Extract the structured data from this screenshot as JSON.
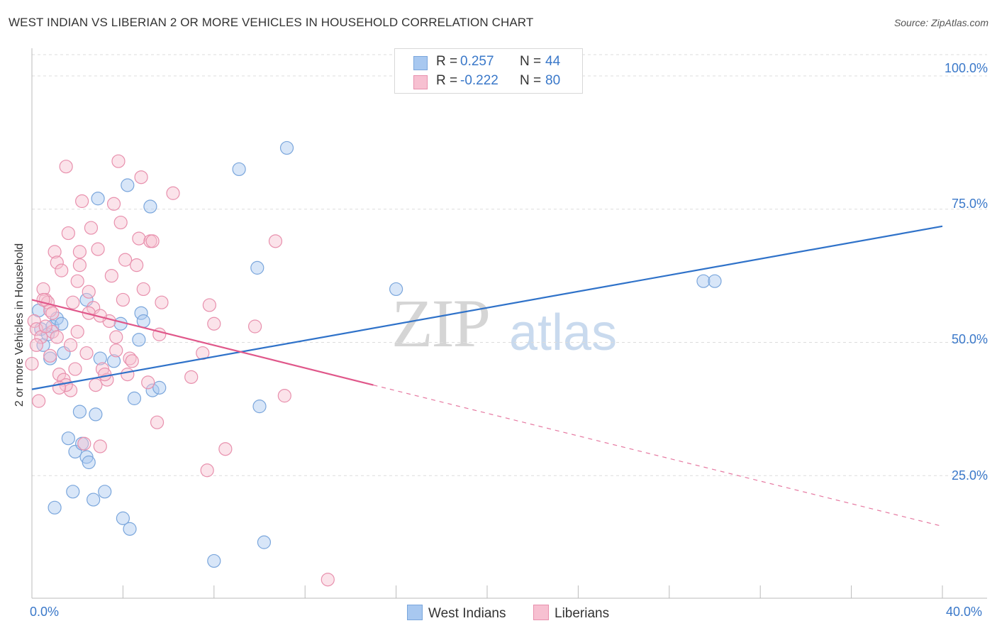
{
  "title": "WEST INDIAN VS LIBERIAN 2 OR MORE VEHICLES IN HOUSEHOLD CORRELATION CHART",
  "source": "Source: ZipAtlas.com",
  "watermark": {
    "zip": "ZIP",
    "atlas": "atlas"
  },
  "legend": {
    "rows": [
      {
        "r_label": "R =",
        "r_value": "0.257",
        "n_label": "N =",
        "n_value": "44",
        "color": "#a8c8f0",
        "border": "#7aa6dc"
      },
      {
        "r_label": "R =",
        "r_value": "-0.222",
        "n_label": "N =",
        "n_value": "80",
        "color": "#f7c0d1",
        "border": "#e890ad"
      }
    ]
  },
  "bottom_legend": [
    {
      "label": "West Indians",
      "color": "#a8c8f0",
      "border": "#7aa6dc"
    },
    {
      "label": "Liberians",
      "color": "#f7c0d1",
      "border": "#e890ad"
    }
  ],
  "chart_data": {
    "type": "scatter",
    "title": "WEST INDIAN VS LIBERIAN 2 OR MORE VEHICLES IN HOUSEHOLD CORRELATION CHART",
    "xlabel": "",
    "ylabel": "2 or more Vehicles in Household",
    "xlim": [
      0,
      40
    ],
    "ylim": [
      2,
      104
    ],
    "x_tick_labels": [
      "0.0%",
      "40.0%"
    ],
    "y_ticks": [
      25,
      50,
      75,
      100
    ],
    "y_tick_labels": [
      "25.0%",
      "50.0%",
      "75.0%",
      "100.0%"
    ],
    "grid": true,
    "series": [
      {
        "name": "West Indians",
        "color": "#7aa6dc",
        "fill": "#a8c8f0",
        "trend": {
          "x": [
            0,
            40
          ],
          "y": [
            41.2,
            71.8
          ],
          "style": "solid",
          "color": "#2f72c9"
        },
        "points": [
          [
            0.4,
            52.5
          ],
          [
            0.5,
            49.5
          ],
          [
            0.7,
            51.5
          ],
          [
            0.8,
            47
          ],
          [
            0.9,
            53
          ],
          [
            1.1,
            54.5
          ],
          [
            1.3,
            53.5
          ],
          [
            1.4,
            48
          ],
          [
            1.6,
            32
          ],
          [
            1.8,
            22
          ],
          [
            1.9,
            29.5
          ],
          [
            2.1,
            37
          ],
          [
            2.2,
            31
          ],
          [
            2.4,
            28.5
          ],
          [
            2.5,
            27.5
          ],
          [
            2.7,
            20.5
          ],
          [
            2.8,
            36.5
          ],
          [
            2.9,
            77
          ],
          [
            3.0,
            47
          ],
          [
            3.2,
            22
          ],
          [
            3.6,
            46.5
          ],
          [
            3.9,
            53.5
          ],
          [
            4.0,
            17
          ],
          [
            4.2,
            79.5
          ],
          [
            4.3,
            15
          ],
          [
            4.5,
            39.5
          ],
          [
            4.7,
            50.5
          ],
          [
            4.8,
            55.5
          ],
          [
            4.9,
            54
          ],
          [
            5.3,
            41
          ],
          [
            5.6,
            41.5
          ],
          [
            5.2,
            75.5
          ],
          [
            2.4,
            58
          ],
          [
            1.0,
            19
          ],
          [
            8.0,
            9
          ],
          [
            9.1,
            82.5
          ],
          [
            9.9,
            64
          ],
          [
            10.0,
            38
          ],
          [
            10.2,
            12.5
          ],
          [
            11.2,
            86.5
          ],
          [
            16.0,
            60
          ],
          [
            29.5,
            61.5
          ],
          [
            30.0,
            61.5
          ],
          [
            0.3,
            56
          ]
        ]
      },
      {
        "name": "Liberians",
        "color": "#e890ad",
        "fill": "#f7c0d1",
        "trend": {
          "x": [
            0,
            15
          ],
          "y": [
            58,
            42
          ],
          "style": "solid",
          "color": "#e0578a",
          "dashed_extension": {
            "x": [
              15,
              40
            ],
            "y": [
              42,
              15.5
            ]
          }
        },
        "points": [
          [
            0.0,
            46
          ],
          [
            0.1,
            54
          ],
          [
            0.2,
            52.5
          ],
          [
            0.3,
            39
          ],
          [
            0.4,
            51
          ],
          [
            0.5,
            60
          ],
          [
            0.6,
            58
          ],
          [
            0.7,
            57.5
          ],
          [
            0.8,
            56
          ],
          [
            0.9,
            52
          ],
          [
            1.0,
            67
          ],
          [
            1.1,
            65
          ],
          [
            1.2,
            44
          ],
          [
            1.3,
            63.5
          ],
          [
            1.4,
            43
          ],
          [
            1.5,
            83
          ],
          [
            1.6,
            70.5
          ],
          [
            1.7,
            49.5
          ],
          [
            1.8,
            57.5
          ],
          [
            1.9,
            45
          ],
          [
            2.0,
            61.5
          ],
          [
            2.1,
            67
          ],
          [
            2.2,
            76.5
          ],
          [
            2.3,
            31
          ],
          [
            2.4,
            48
          ],
          [
            2.5,
            59.5
          ],
          [
            2.6,
            71.5
          ],
          [
            2.7,
            56.5
          ],
          [
            2.8,
            42
          ],
          [
            3.0,
            30.5
          ],
          [
            3.1,
            45
          ],
          [
            3.3,
            43
          ],
          [
            3.5,
            62.5
          ],
          [
            3.6,
            76
          ],
          [
            3.7,
            51
          ],
          [
            3.8,
            84
          ],
          [
            3.9,
            72.5
          ],
          [
            4.0,
            58
          ],
          [
            4.1,
            65.5
          ],
          [
            4.3,
            47
          ],
          [
            4.4,
            46.5
          ],
          [
            4.6,
            64.5
          ],
          [
            4.7,
            69.5
          ],
          [
            4.8,
            81
          ],
          [
            5.1,
            42.5
          ],
          [
            5.2,
            69
          ],
          [
            5.3,
            69
          ],
          [
            5.5,
            35
          ],
          [
            5.6,
            51.5
          ],
          [
            5.7,
            57.5
          ],
          [
            6.2,
            78
          ],
          [
            7.0,
            43.5
          ],
          [
            7.5,
            48
          ],
          [
            7.7,
            26
          ],
          [
            7.8,
            57
          ],
          [
            8.0,
            53.5
          ],
          [
            8.5,
            30
          ],
          [
            9.8,
            53
          ],
          [
            10.7,
            69
          ],
          [
            11.1,
            40
          ],
          [
            13.0,
            5.5
          ],
          [
            0.5,
            58
          ],
          [
            0.9,
            55.5
          ],
          [
            1.1,
            51
          ],
          [
            2.5,
            55.5
          ],
          [
            3.2,
            44
          ],
          [
            1.7,
            41
          ],
          [
            2.0,
            52
          ],
          [
            0.2,
            49.5
          ],
          [
            2.9,
            67.5
          ],
          [
            3.4,
            54
          ],
          [
            0.8,
            47.5
          ],
          [
            4.2,
            44
          ],
          [
            1.5,
            42
          ],
          [
            3.0,
            55
          ],
          [
            1.2,
            41.5
          ],
          [
            2.1,
            64.5
          ],
          [
            3.7,
            48.5
          ],
          [
            0.6,
            53
          ],
          [
            4.9,
            60
          ]
        ]
      }
    ]
  }
}
